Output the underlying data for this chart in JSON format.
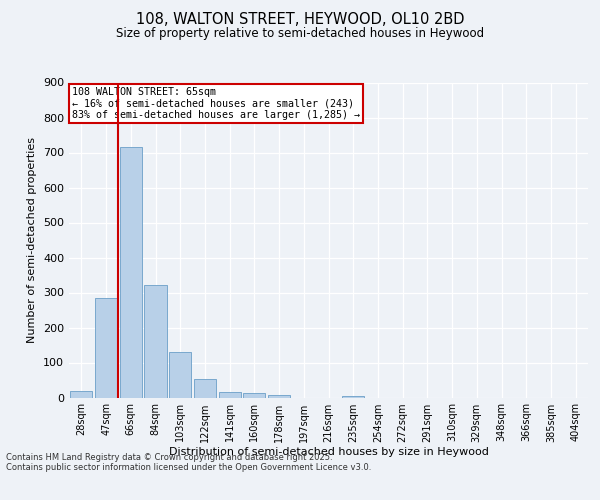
{
  "title1": "108, WALTON STREET, HEYWOOD, OL10 2BD",
  "title2": "Size of property relative to semi-detached houses in Heywood",
  "xlabel": "Distribution of semi-detached houses by size in Heywood",
  "ylabel": "Number of semi-detached properties",
  "categories": [
    "28sqm",
    "47sqm",
    "66sqm",
    "84sqm",
    "103sqm",
    "122sqm",
    "141sqm",
    "160sqm",
    "178sqm",
    "197sqm",
    "216sqm",
    "235sqm",
    "254sqm",
    "272sqm",
    "291sqm",
    "310sqm",
    "329sqm",
    "348sqm",
    "366sqm",
    "385sqm",
    "404sqm"
  ],
  "values": [
    20,
    283,
    716,
    322,
    130,
    52,
    15,
    12,
    7,
    0,
    0,
    5,
    0,
    0,
    0,
    0,
    0,
    0,
    0,
    0,
    0
  ],
  "bar_color": "#b8d0e8",
  "bar_edge_color": "#6a9fc8",
  "vline_color": "#cc0000",
  "annotation_title": "108 WALTON STREET: 65sqm",
  "annotation_line1": "← 16% of semi-detached houses are smaller (243)",
  "annotation_line2": "83% of semi-detached houses are larger (1,285) →",
  "annotation_box_color": "#cc0000",
  "ylim": [
    0,
    900
  ],
  "yticks": [
    0,
    100,
    200,
    300,
    400,
    500,
    600,
    700,
    800,
    900
  ],
  "footer1": "Contains HM Land Registry data © Crown copyright and database right 2025.",
  "footer2": "Contains public sector information licensed under the Open Government Licence v3.0.",
  "bg_color": "#eef2f7",
  "plot_bg_color": "#eef2f7"
}
